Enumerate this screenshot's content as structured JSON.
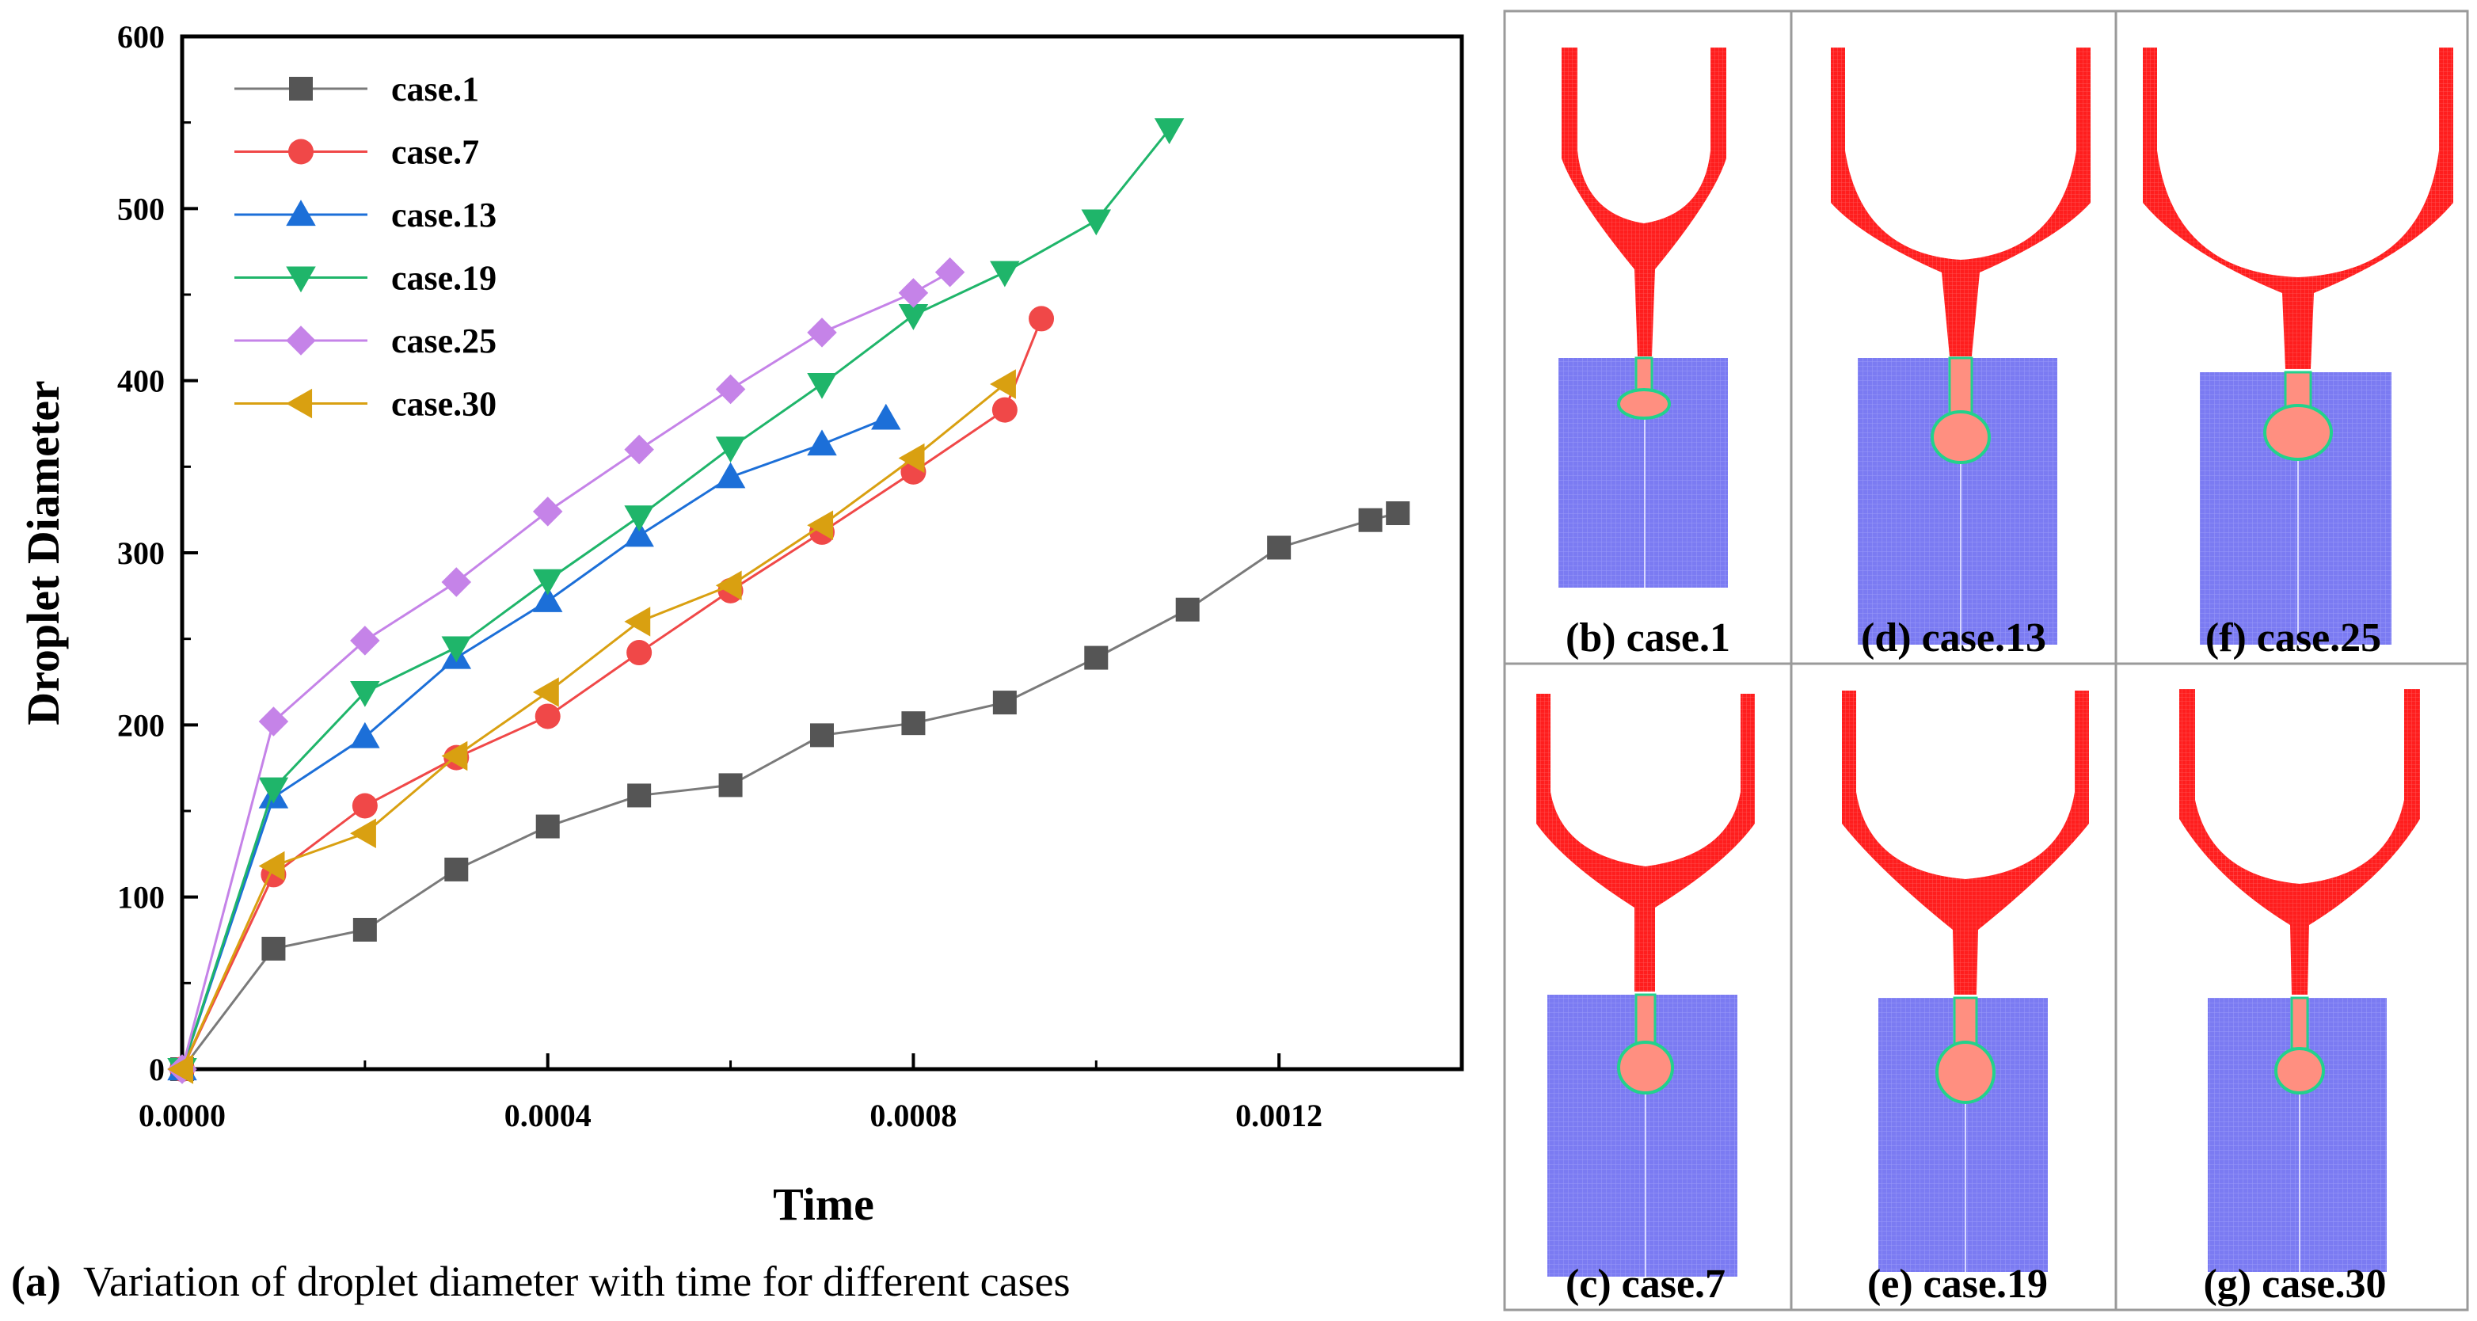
{
  "chart_data": {
    "type": "line",
    "title": "",
    "xlabel": "Time",
    "ylabel": "Droplet Diameter",
    "xlim": [
      0,
      0.0014
    ],
    "ylim": [
      0,
      600
    ],
    "xticks": [
      "0.0000",
      "0.0004",
      "0.0008",
      "0.0012"
    ],
    "xtick_values": [
      0,
      0.0004,
      0.0008,
      0.0012
    ],
    "yticks": [
      "0",
      "100",
      "200",
      "300",
      "400",
      "500",
      "600"
    ],
    "ytick_values": [
      0,
      100,
      200,
      300,
      400,
      500,
      600
    ],
    "grid": false,
    "legend_position": "top-left",
    "series": [
      {
        "name": "case.1",
        "color": "#555555",
        "line_color": "#7a7a7a",
        "marker": "square",
        "x": [
          0,
          0.0001,
          0.0002,
          0.0003,
          0.0004,
          0.0005,
          0.0006,
          0.0007,
          0.0008,
          0.0009,
          0.001,
          0.0011,
          0.0012,
          0.0013,
          0.00133
        ],
        "y": [
          0,
          70,
          81,
          116,
          141,
          159,
          165,
          194,
          201,
          213,
          239,
          267,
          303,
          319,
          323
        ]
      },
      {
        "name": "case.7",
        "color": "#f04848",
        "line_color": "#f04848",
        "marker": "circle",
        "x": [
          0,
          0.0001,
          0.0002,
          0.0003,
          0.0004,
          0.0005,
          0.0006,
          0.0007,
          0.0008,
          0.0009,
          0.00094
        ],
        "y": [
          0,
          113,
          153,
          181,
          205,
          242,
          278,
          312,
          347,
          383,
          436
        ]
      },
      {
        "name": "case.13",
        "color": "#1c6fd8",
        "line_color": "#1c6fd8",
        "marker": "triangle-up",
        "x": [
          0,
          0.0001,
          0.0002,
          0.0003,
          0.0004,
          0.0005,
          0.0006,
          0.0007,
          0.00077
        ],
        "y": [
          0,
          158,
          193,
          239,
          272,
          310,
          344,
          363,
          378
        ]
      },
      {
        "name": "case.19",
        "color": "#1fb56a",
        "line_color": "#1fb56a",
        "marker": "triangle-down",
        "x": [
          0,
          0.0001,
          0.0002,
          0.0003,
          0.0004,
          0.0005,
          0.0006,
          0.0007,
          0.0008,
          0.0009,
          0.001,
          0.00108
        ],
        "y": [
          0,
          163,
          219,
          245,
          284,
          321,
          361,
          398,
          438,
          463,
          493,
          546
        ]
      },
      {
        "name": "case.25",
        "color": "#c583e8",
        "line_color": "#c583e8",
        "marker": "diamond",
        "x": [
          0,
          0.0001,
          0.0002,
          0.0003,
          0.0004,
          0.0005,
          0.0006,
          0.0007,
          0.0008,
          0.00084
        ],
        "y": [
          0,
          202,
          249,
          283,
          324,
          360,
          395,
          428,
          451,
          463
        ]
      },
      {
        "name": "case.30",
        "color": "#d9a011",
        "line_color": "#d9a011",
        "marker": "triangle-left",
        "x": [
          0,
          0.0001,
          0.0002,
          0.0003,
          0.0004,
          0.0005,
          0.0006,
          0.0007,
          0.0008,
          0.0009
        ],
        "y": [
          0,
          118,
          137,
          182,
          219,
          260,
          281,
          316,
          355,
          398
        ]
      }
    ]
  },
  "caption": {
    "label": "(a)",
    "text": "Variation of droplet diameter with time for different cases"
  },
  "panels": [
    {
      "label": "(b) case.1"
    },
    {
      "label": "(d) case.13"
    },
    {
      "label": "(f) case.25"
    },
    {
      "label": "(c) case.7"
    },
    {
      "label": "(e) case.19"
    },
    {
      "label": "(g) case.30"
    }
  ],
  "colors": {
    "fluid": "#ff1e1e",
    "droplet": "#ff8f80",
    "domain": "#7c7cf2",
    "interface": "#22d28c",
    "panel_border": "#aaaaaa"
  }
}
